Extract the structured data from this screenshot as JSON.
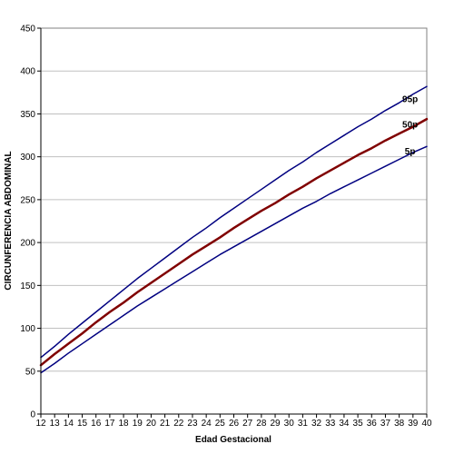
{
  "chart_data": {
    "type": "line",
    "title": "",
    "xlabel": "Edad Gestacional",
    "ylabel": "CIRCUNFERENCIA ABDOMINAL",
    "xlim": [
      12,
      40
    ],
    "ylim": [
      0,
      450
    ],
    "x_ticks": [
      12,
      13,
      14,
      15,
      16,
      17,
      18,
      19,
      20,
      21,
      22,
      23,
      24,
      25,
      26,
      27,
      28,
      29,
      30,
      31,
      32,
      33,
      34,
      35,
      36,
      37,
      38,
      39,
      40
    ],
    "y_ticks": [
      0,
      50,
      100,
      150,
      200,
      250,
      300,
      350,
      400,
      450
    ],
    "grid": "horizontal",
    "legend": "labels at right end of lines",
    "x": [
      12,
      13,
      14,
      15,
      16,
      17,
      18,
      19,
      20,
      21,
      22,
      23,
      24,
      25,
      26,
      27,
      28,
      29,
      30,
      31,
      32,
      33,
      34,
      35,
      36,
      37,
      38,
      39,
      40
    ],
    "series": [
      {
        "name": "95p",
        "color": "#000080",
        "width": 1.5,
        "values": [
          66,
          79,
          93,
          106,
          119,
          132,
          145,
          158,
          170,
          182,
          194,
          206,
          217,
          229,
          240,
          251,
          262,
          273,
          284,
          294,
          305,
          315,
          325,
          335,
          344,
          354,
          363,
          373,
          382
        ]
      },
      {
        "name": "50p",
        "color": "#800000",
        "width": 2.5,
        "values": [
          57,
          70,
          82,
          94,
          107,
          119,
          130,
          142,
          153,
          164,
          175,
          186,
          196,
          206,
          217,
          227,
          237,
          246,
          256,
          265,
          275,
          284,
          293,
          302,
          310,
          319,
          327,
          335,
          344
        ]
      },
      {
        "name": "5p",
        "color": "#000080",
        "width": 1.5,
        "values": [
          48,
          59,
          71,
          82,
          93,
          104,
          115,
          126,
          136,
          146,
          156,
          166,
          176,
          186,
          195,
          204,
          213,
          222,
          231,
          240,
          248,
          257,
          265,
          273,
          281,
          289,
          297,
          305,
          312
        ]
      }
    ],
    "series_label_positions": [
      {
        "name": "95p",
        "x": 38,
        "y": 367
      },
      {
        "name": "50p",
        "x": 38,
        "y": 337
      },
      {
        "name": "5p",
        "x": 38,
        "y": 306
      }
    ]
  }
}
